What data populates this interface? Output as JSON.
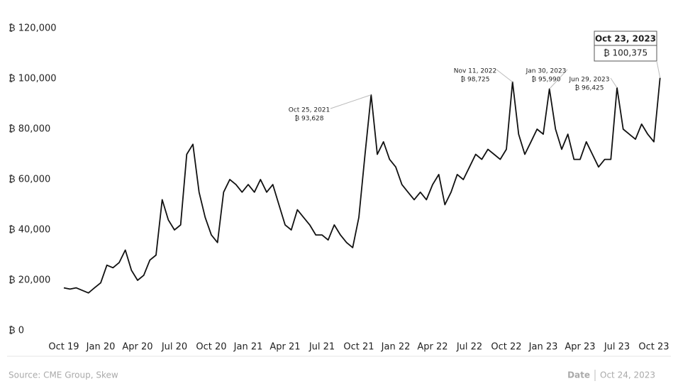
{
  "chart_data": {
    "type": "line",
    "color": "#111111",
    "categories": [
      "Oct 19",
      null,
      null,
      null,
      null,
      null,
      "Jan 20",
      null,
      null,
      null,
      null,
      null,
      "Apr 20",
      null,
      null,
      null,
      null,
      null,
      "Jul 20",
      null,
      null,
      null,
      null,
      null,
      "Oct 20",
      null,
      null,
      null,
      null,
      null,
      "Jan 21",
      null,
      null,
      null,
      null,
      null,
      "Apr 21",
      null,
      null,
      null,
      null,
      null,
      "Jul 21",
      null,
      null,
      null,
      null,
      null,
      "Oct 21",
      null,
      null,
      null,
      null,
      null,
      "Jan 22",
      null,
      null,
      null,
      null,
      null,
      "Apr 22",
      null,
      null,
      null,
      null,
      null,
      "Jul 22",
      null,
      null,
      null,
      null,
      null,
      "Oct 22",
      null,
      null,
      null,
      null,
      null,
      "Jan 23",
      null,
      null,
      null,
      null,
      null,
      "Apr 23",
      null,
      null,
      null,
      null,
      null,
      "Jul 23",
      null,
      null,
      null,
      null,
      null,
      "Oct 23",
      null
    ],
    "values": [
      17000,
      16500,
      17000,
      16000,
      15000,
      17000,
      19000,
      26000,
      25000,
      27000,
      32000,
      24000,
      20000,
      22000,
      28000,
      30000,
      52000,
      44000,
      40000,
      42000,
      70000,
      74000,
      55000,
      45000,
      38000,
      35000,
      55000,
      60000,
      58000,
      55000,
      58000,
      55000,
      60000,
      55000,
      58000,
      50000,
      42000,
      40000,
      48000,
      45000,
      42000,
      38000,
      38000,
      36000,
      42000,
      38000,
      35000,
      33000,
      45000,
      70000,
      93628,
      70000,
      75000,
      68000,
      65000,
      58000,
      55000,
      52000,
      55000,
      52000,
      58000,
      62000,
      50000,
      55000,
      62000,
      60000,
      65000,
      70000,
      68000,
      72000,
      70000,
      68000,
      72000,
      98725,
      78000,
      70000,
      75000,
      80000,
      78000,
      95990,
      80000,
      72000,
      78000,
      68000,
      68000,
      75000,
      70000,
      65000,
      68000,
      68000,
      96425,
      80000,
      78000,
      76000,
      82000,
      78000,
      75000,
      100375
    ],
    "ylim": [
      0,
      120000
    ],
    "yticks": [
      {
        "value": 0,
        "label": "₿ 0"
      },
      {
        "value": 20000,
        "label": "₿ 20,000"
      },
      {
        "value": 40000,
        "label": "₿ 40,000"
      },
      {
        "value": 60000,
        "label": "₿ 60,000"
      },
      {
        "value": 80000,
        "label": "₿ 80,000"
      },
      {
        "value": 100000,
        "label": "₿ 100,000"
      },
      {
        "value": 120000,
        "label": "₿ 120,000"
      }
    ],
    "annotations": [
      {
        "date": "Oct 25, 2021",
        "value_label": "₿ 93,628"
      },
      {
        "date": "Nov 11, 2022",
        "value_label": "₿ 98,725"
      },
      {
        "date": "Jan 30, 2023",
        "value_label": "₿ 95,990"
      },
      {
        "date": "Jun 29, 2023",
        "value_label": "₿ 96,425"
      },
      {
        "date": "Oct 23, 2023",
        "value_label": "₿ 100,375"
      }
    ],
    "source": "Source: CME Group, Skew",
    "date_label": "Date",
    "date": "Oct 24, 2023"
  }
}
